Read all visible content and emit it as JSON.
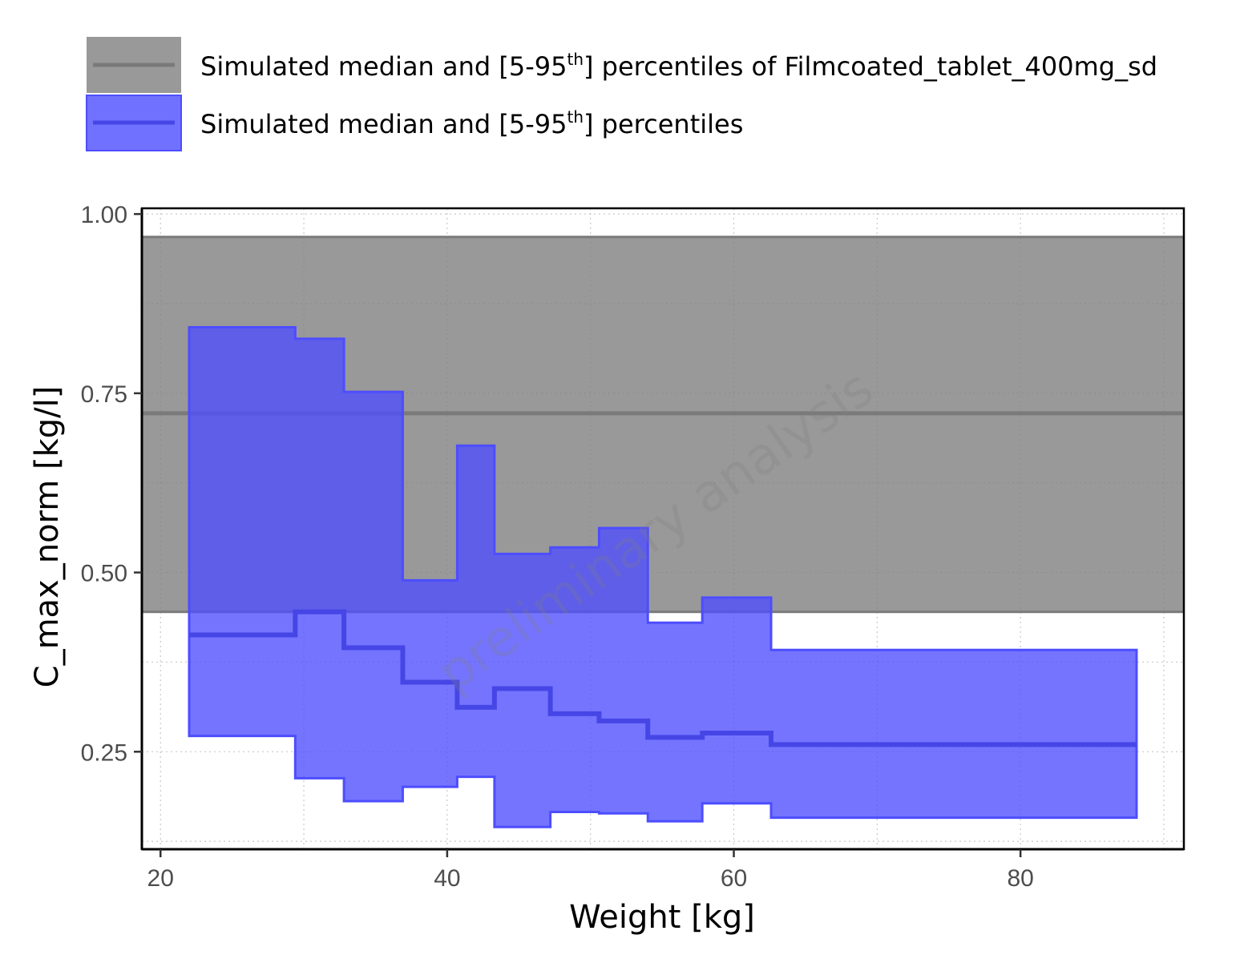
{
  "chart_data": {
    "type": "area",
    "xlabel": "Weight [kg]",
    "ylabel": "C_max_norm [kg/l]",
    "xlim": [
      18.7,
      91.4
    ],
    "ylim": [
      0.114,
      1.008
    ],
    "x_ticks": [
      20,
      40,
      60,
      80
    ],
    "x_tick_labels": [
      "20",
      "40",
      "60",
      "80"
    ],
    "y_ticks": [
      0.25,
      0.5,
      0.75,
      1.0
    ],
    "y_tick_labels": [
      "0.25",
      "0.50",
      "0.75",
      "1.00"
    ],
    "grid": true,
    "watermark": "preliminary analysis",
    "legend": {
      "position": "top-left",
      "entries": [
        {
          "text": "Simulated median and [5-95",
          "sup": "th",
          "suffix": "] percentiles of Filmcoated_tablet_400mg_sd",
          "color": "#808080"
        },
        {
          "text": "Simulated median and [5-95",
          "sup": "th",
          "suffix": "] percentiles",
          "color": "#4d4dff"
        }
      ]
    },
    "reference_band": {
      "name": "Filmcoated_tablet_400mg_sd",
      "color": "#808080",
      "lower": 0.445,
      "median": 0.722,
      "upper": 0.968
    },
    "series": [
      {
        "color": "#4d4dff",
        "bins": [
          {
            "x0": 22.0,
            "x1": 29.4,
            "lower": 0.272,
            "median": 0.413,
            "upper": 0.842
          },
          {
            "x0": 29.4,
            "x1": 32.8,
            "lower": 0.213,
            "median": 0.445,
            "upper": 0.826
          },
          {
            "x0": 32.8,
            "x1": 36.9,
            "lower": 0.181,
            "median": 0.395,
            "upper": 0.752
          },
          {
            "x0": 36.9,
            "x1": 40.7,
            "lower": 0.201,
            "median": 0.347,
            "upper": 0.489
          },
          {
            "x0": 40.7,
            "x1": 43.3,
            "lower": 0.215,
            "median": 0.312,
            "upper": 0.677
          },
          {
            "x0": 43.3,
            "x1": 47.2,
            "lower": 0.145,
            "median": 0.338,
            "upper": 0.526
          },
          {
            "x0": 47.2,
            "x1": 50.6,
            "lower": 0.166,
            "median": 0.303,
            "upper": 0.535
          },
          {
            "x0": 50.6,
            "x1": 54.0,
            "lower": 0.164,
            "median": 0.293,
            "upper": 0.562
          },
          {
            "x0": 54.0,
            "x1": 57.8,
            "lower": 0.153,
            "median": 0.27,
            "upper": 0.43
          },
          {
            "x0": 57.8,
            "x1": 62.6,
            "lower": 0.178,
            "median": 0.276,
            "upper": 0.465
          },
          {
            "x0": 62.6,
            "x1": 88.1,
            "lower": 0.158,
            "median": 0.26,
            "upper": 0.392
          }
        ]
      }
    ]
  }
}
